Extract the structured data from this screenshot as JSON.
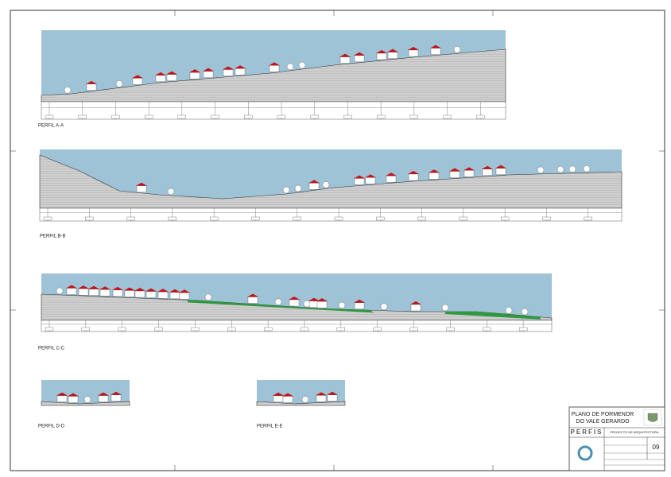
{
  "profiles": [
    {
      "label": "PERFIL A-A"
    },
    {
      "label": "PERFIL B-B"
    },
    {
      "label": "PERFIL C-C"
    },
    {
      "label": "PERFIL D-D"
    },
    {
      "label": "PERFIL E-E"
    }
  ],
  "title_block": {
    "plan": "PLANO DE PORMENOR",
    "place": "DO VALE GERARDO",
    "sheet_title": "PERFIS",
    "project": "PROJECTO DE ARQUITECTURA",
    "sheet_number": "09"
  }
}
